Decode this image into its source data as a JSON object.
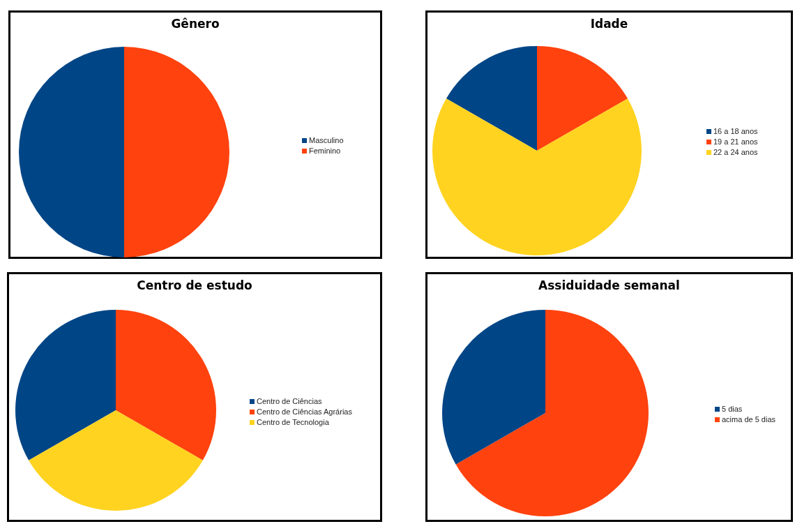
{
  "chart_data": [
    {
      "type": "pie",
      "title": "Gênero",
      "categories": [
        "Masculino",
        "Feminino"
      ],
      "values": [
        50,
        50
      ],
      "colors": [
        "#004586",
        "#ff420e"
      ],
      "legend": "right"
    },
    {
      "type": "pie",
      "title": "Idade",
      "categories": [
        "16 a 18 anos",
        "19 a 21 anos",
        "22 a 24 anos"
      ],
      "values": [
        16.7,
        16.7,
        66.6
      ],
      "colors": [
        "#004586",
        "#ff420e",
        "#ffd320"
      ],
      "legend": "right"
    },
    {
      "type": "pie",
      "title": "Centro de estudo",
      "categories": [
        "Centro de Ciências",
        "Centro de Ciências Agrárias",
        "Centro de Tecnologia"
      ],
      "values": [
        33.3,
        33.3,
        33.4
      ],
      "colors": [
        "#004586",
        "#ff420e",
        "#ffd320"
      ],
      "legend": "right"
    },
    {
      "type": "pie",
      "title": "Assiduidade semanal",
      "categories": [
        "5 dias",
        "acima de 5 dias"
      ],
      "values": [
        33.3,
        66.7
      ],
      "colors": [
        "#004586",
        "#ff420e"
      ],
      "legend": "right"
    }
  ]
}
